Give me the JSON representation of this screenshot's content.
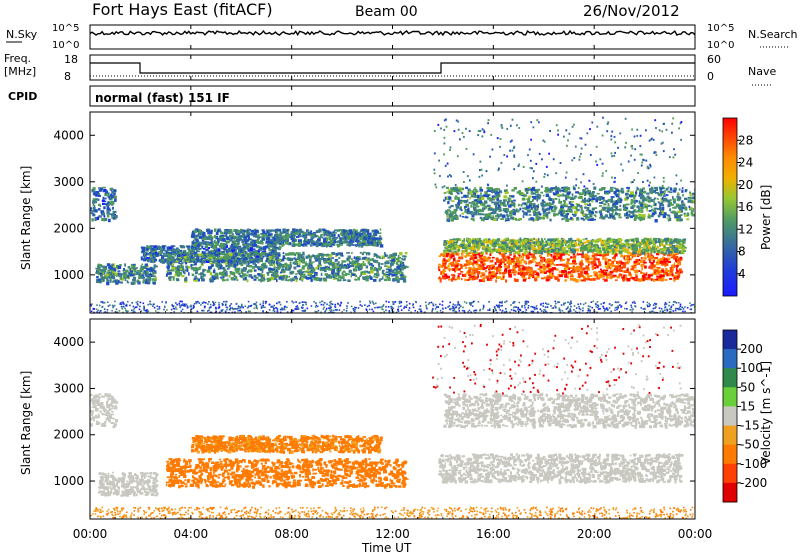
{
  "header": {
    "title": "Fort Hays East (fitACF)",
    "beam": "Beam 00",
    "date": "26/Nov/2012"
  },
  "top_panels": {
    "nsky_label": "N.Sky",
    "nsky_ticks": [
      "10^5",
      "10^0"
    ],
    "nsearch_label": "N.Search",
    "nsearch_ticks": [
      "10^5",
      "10^0"
    ],
    "freq_label_1": "Freq.",
    "freq_label_2": "[MHz]",
    "freq_ticks": [
      "18",
      "8"
    ],
    "nave_label": "Nave",
    "nave_ticks": [
      "60",
      "0"
    ],
    "cpid_label": "CPID",
    "cpid_text": "normal (fast) 151 IF"
  },
  "axes": {
    "ylabel": "Slant Range [km]",
    "xlabel": "Time UT",
    "yticks": [
      "1000",
      "2000",
      "3000",
      "4000"
    ],
    "xticks": [
      "00:00",
      "04:00",
      "08:00",
      "12:00",
      "16:00",
      "20:00",
      "00:00"
    ]
  },
  "chart_data": [
    {
      "type": "heatmap",
      "title": "",
      "xlabel": "Time UT",
      "ylabel": "Slant Range [km]",
      "xlim": [
        "00:00",
        "24:00"
      ],
      "ylim": [
        180,
        4500
      ],
      "colorbar": {
        "label": "Power [dB]",
        "ticks": [
          "4",
          "8",
          "12",
          "16",
          "20",
          "24",
          "28"
        ],
        "colors": [
          "#1a1aff",
          "#2050c0",
          "#3d7a8e",
          "#4f9b5a",
          "#a0c828",
          "#f0b400",
          "#ff8c00",
          "#ff4a00",
          "#ff0000"
        ]
      },
      "echo_regions": [
        {
          "t0": 0.0,
          "t1": 1.0,
          "r0": 2200,
          "r1": 2900,
          "level": 8
        },
        {
          "t0": 0.2,
          "t1": 2.6,
          "r0": 850,
          "r1": 1250,
          "level": 10
        },
        {
          "t0": 2.0,
          "t1": 7.5,
          "r0": 1300,
          "r1": 1650,
          "level": 8
        },
        {
          "t0": 3.0,
          "t1": 12.5,
          "r0": 900,
          "r1": 1500,
          "level": 10
        },
        {
          "t0": 4.0,
          "t1": 11.5,
          "r0": 1650,
          "r1": 2000,
          "level": 9
        },
        {
          "t0": 13.8,
          "t1": 23.4,
          "r0": 900,
          "r1": 1500,
          "level": 26
        },
        {
          "t0": 14.0,
          "t1": 23.6,
          "r0": 1500,
          "r1": 1800,
          "level": 14
        },
        {
          "t0": 14.0,
          "t1": 24.0,
          "r0": 2200,
          "r1": 2900,
          "level": 10
        }
      ]
    },
    {
      "type": "heatmap",
      "title": "",
      "xlabel": "Time UT",
      "ylabel": "Slant Range [km]",
      "xlim": [
        "00:00",
        "24:00"
      ],
      "ylim": [
        180,
        4500
      ],
      "colorbar": {
        "label": "Velocity [m s^-1]",
        "ticks": [
          "200",
          "100",
          "50",
          "15",
          "-15",
          "-50",
          "-100",
          "-200"
        ],
        "colors": [
          "#1a2a9a",
          "#2a6ac0",
          "#2e8a4a",
          "#6ad03a",
          "#c8c8c0",
          "#f0a020",
          "#ff7a00",
          "#ff4000",
          "#e00000"
        ]
      },
      "echo_regions": [
        {
          "t0": 0.0,
          "t1": 1.0,
          "r0": 2200,
          "r1": 2900,
          "velocity": 0
        },
        {
          "t0": 0.3,
          "t1": 2.6,
          "r0": 700,
          "r1": 1200,
          "velocity": 0
        },
        {
          "t0": 4.0,
          "t1": 11.5,
          "r0": 1650,
          "r1": 2000,
          "velocity": -40
        },
        {
          "t0": 3.0,
          "t1": 12.5,
          "r0": 900,
          "r1": 1500,
          "velocity": -50
        },
        {
          "t0": 13.8,
          "t1": 23.4,
          "r0": 1000,
          "r1": 1600,
          "velocity": 0
        },
        {
          "t0": 14.0,
          "t1": 24.0,
          "r0": 2200,
          "r1": 2900,
          "velocity": 0
        }
      ]
    }
  ]
}
